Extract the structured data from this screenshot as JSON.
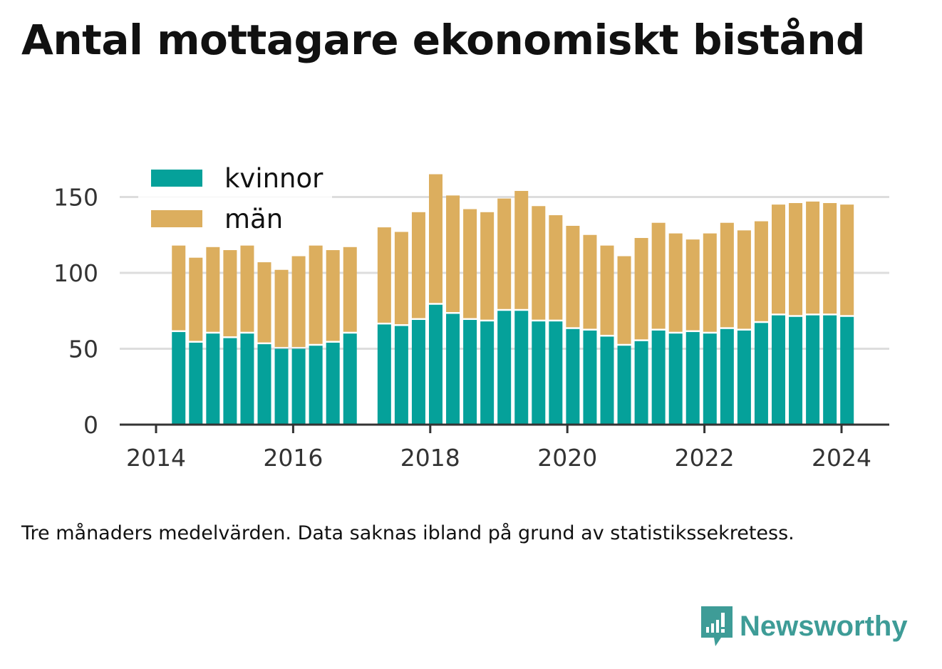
{
  "title": "Antal mottagare ekonomiskt bistånd",
  "note": "Tre månaders medelvärden. Data saknas ibland på grund av statistikssekretess.",
  "brand": {
    "name": "Newsworthy",
    "icon": "newsworthy-logo-icon",
    "color": "#3e9c97"
  },
  "colors": {
    "kvinnor": "#05a19a",
    "man": "#dcae5e",
    "grid": "#dddddd",
    "axis": "#333333"
  },
  "chart_data": {
    "type": "bar",
    "stacked": true,
    "title": "",
    "xlabel": "",
    "ylabel": "",
    "ylim": [
      0,
      165
    ],
    "yticks": [
      0,
      50,
      100,
      150
    ],
    "xticks": [
      "2014",
      "2016",
      "2018",
      "2020",
      "2022",
      "2024"
    ],
    "x_range": [
      2013.5,
      2024.7
    ],
    "grid": "horizontal",
    "legend_position": "top-left",
    "x": [
      2014.33,
      2014.58,
      2014.83,
      2015.08,
      2015.33,
      2015.58,
      2015.83,
      2016.08,
      2016.33,
      2016.58,
      2016.83,
      2017.33,
      2017.58,
      2017.83,
      2018.08,
      2018.33,
      2018.58,
      2018.83,
      2019.08,
      2019.33,
      2019.58,
      2019.83,
      2020.08,
      2020.33,
      2020.58,
      2020.83,
      2021.08,
      2021.33,
      2021.58,
      2021.83,
      2022.08,
      2022.33,
      2022.58,
      2022.83,
      2023.08,
      2023.33,
      2023.58,
      2023.83,
      2024.08
    ],
    "series": [
      {
        "name": "kvinnor",
        "values": [
          61,
          54,
          60,
          57,
          60,
          53,
          50,
          50,
          52,
          54,
          60,
          66,
          65,
          69,
          79,
          73,
          69,
          68,
          75,
          75,
          68,
          68,
          63,
          62,
          58,
          52,
          55,
          62,
          60,
          61,
          60,
          63,
          62,
          67,
          72,
          71,
          72,
          72,
          71
        ]
      },
      {
        "name": "män",
        "values": [
          57,
          56,
          57,
          58,
          58,
          54,
          52,
          61,
          66,
          61,
          57,
          64,
          62,
          71,
          86,
          78,
          73,
          72,
          74,
          79,
          76,
          70,
          68,
          63,
          60,
          59,
          68,
          71,
          66,
          61,
          66,
          70,
          66,
          67,
          73,
          75,
          75,
          74,
          74
        ]
      }
    ]
  }
}
